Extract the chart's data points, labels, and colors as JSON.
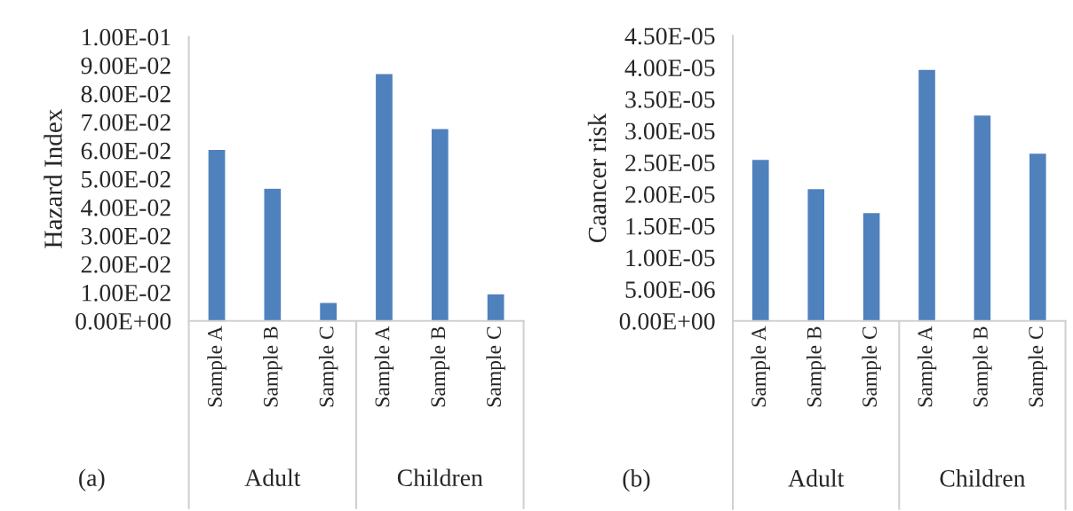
{
  "chart_data": [
    {
      "type": "bar",
      "ylabel": "Hazard Index",
      "categories": [
        "Sample A",
        "Sample B",
        "Sample C",
        "Sample A",
        "Sample B",
        "Sample C"
      ],
      "values": [
        0.0604,
        0.0467,
        0.0065,
        0.0871,
        0.0677,
        0.0096
      ],
      "color": "#4f81bd",
      "ylim": [
        0,
        0.1
      ],
      "yticks": [
        {
          "value": 0,
          "label": "0.00E+00"
        },
        {
          "value": 0.01,
          "label": "1.00E-02"
        },
        {
          "value": 0.02,
          "label": "2.00E-02"
        },
        {
          "value": 0.03,
          "label": "3.00E-02"
        },
        {
          "value": 0.04,
          "label": "4.00E-02"
        },
        {
          "value": 0.05,
          "label": "5.00E-02"
        },
        {
          "value": 0.06,
          "label": "6.00E-02"
        },
        {
          "value": 0.07,
          "label": "7.00E-02"
        },
        {
          "value": 0.08,
          "label": "8.00E-02"
        },
        {
          "value": 0.09,
          "label": "9.00E-02"
        },
        {
          "value": 0.1,
          "label": "1.00E-01"
        }
      ],
      "annotations": [
        "(a)",
        "Adult",
        "Children"
      ],
      "grid": false,
      "legend": false
    },
    {
      "type": "bar",
      "ylabel": "Caancer risk",
      "categories": [
        "Sample A",
        "Sample B",
        "Sample C",
        "Sample A",
        "Sample B",
        "Sample C"
      ],
      "values": [
        2.55e-05,
        2.09e-05,
        1.71e-05,
        3.97e-05,
        3.25e-05,
        2.65e-05
      ],
      "color": "#4f81bd",
      "ylim": [
        0,
        4.5e-05
      ],
      "yticks": [
        {
          "value": 0,
          "label": "0.00E+00"
        },
        {
          "value": 5e-06,
          "label": "5.00E-06"
        },
        {
          "value": 1e-05,
          "label": "1.00E-05"
        },
        {
          "value": 1.5e-05,
          "label": "1.50E-05"
        },
        {
          "value": 2e-05,
          "label": "2.00E-05"
        },
        {
          "value": 2.5e-05,
          "label": "2.50E-05"
        },
        {
          "value": 3e-05,
          "label": "3.00E-05"
        },
        {
          "value": 3.5e-05,
          "label": "3.50E-05"
        },
        {
          "value": 4e-05,
          "label": "4.00E-05"
        },
        {
          "value": 4.5e-05,
          "label": "4.50E-05"
        }
      ],
      "annotations": [
        "(b)",
        "Adult",
        "Children"
      ],
      "grid": false,
      "legend": false
    }
  ]
}
